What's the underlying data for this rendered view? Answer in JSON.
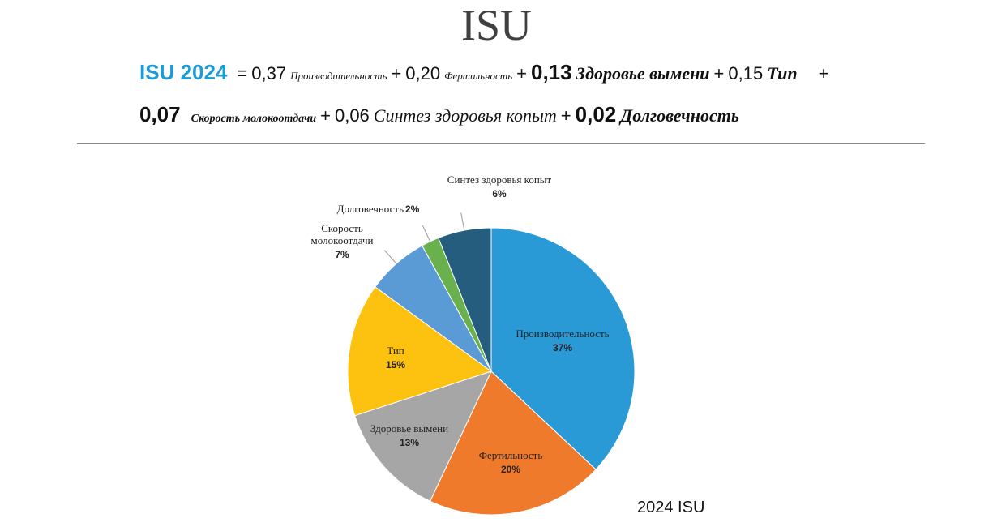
{
  "title": "ISU",
  "formula": {
    "lhs": "ISU 2024",
    "equals": "=",
    "plus": "+",
    "terms": [
      {
        "coefficient": "0,37",
        "name": "Производительность"
      },
      {
        "coefficient": "0,20",
        "name": "Фертильность"
      },
      {
        "coefficient": "0,13",
        "name": "Здоровье вымени"
      },
      {
        "coefficient": "0,15",
        "name": "Тип"
      },
      {
        "coefficient": "0,07",
        "name": "Скорость молокоотдачи"
      },
      {
        "coefficient": "0,06",
        "name": "Синтез здоровья копыт"
      },
      {
        "coefficient": "0,02",
        "name": "Долговечность"
      }
    ]
  },
  "chart_data": {
    "type": "pie",
    "categories": [
      "Производительность",
      "Фертильность",
      "Здоровье вымени",
      "Тип",
      "Скорость молокоотдачи",
      "Долговечность",
      "Синтез здоровья копыт"
    ],
    "values": [
      37,
      20,
      13,
      15,
      7,
      2,
      6
    ],
    "value_labels": [
      "37%",
      "20%",
      "13%",
      "15%",
      "7%",
      "2%",
      "6%"
    ],
    "colors": [
      "#2a9ad6",
      "#f07a2c",
      "#a6a6a6",
      "#fdc20f",
      "#5b9bd5",
      "#6ab04c",
      "#245d7e"
    ]
  },
  "caption": "2024 ISU"
}
